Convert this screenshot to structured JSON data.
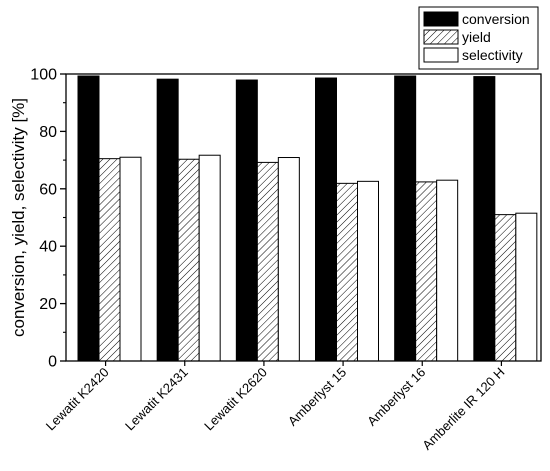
{
  "chart_data": {
    "type": "bar",
    "categories": [
      "Lewatit K2420",
      "Lewatit K2431",
      "Lewatit K2620",
      "Amberlyst 15",
      "Amberlyst 16",
      "Amberlite IR 120 H"
    ],
    "series": [
      {
        "name": "conversion",
        "values": [
          99.3,
          98.2,
          97.9,
          98.6,
          99.3,
          99.1
        ],
        "color": "#000000",
        "fill": "solid"
      },
      {
        "name": "yield",
        "values": [
          70.5,
          70.3,
          69.2,
          61.9,
          62.4,
          51.0
        ],
        "color": "#000000",
        "fill": "hatched"
      },
      {
        "name": "selectivity",
        "values": [
          71.0,
          71.7,
          70.9,
          62.6,
          63.0,
          51.5
        ],
        "color": "#ffffff",
        "fill": "white"
      }
    ],
    "ylabel": "conversion, yield, selectivity [%]",
    "xlabel": "",
    "ylim": [
      0,
      100
    ],
    "yticks": [
      0,
      20,
      40,
      60,
      80,
      100
    ],
    "grid": false,
    "legend_position": "top-right"
  }
}
